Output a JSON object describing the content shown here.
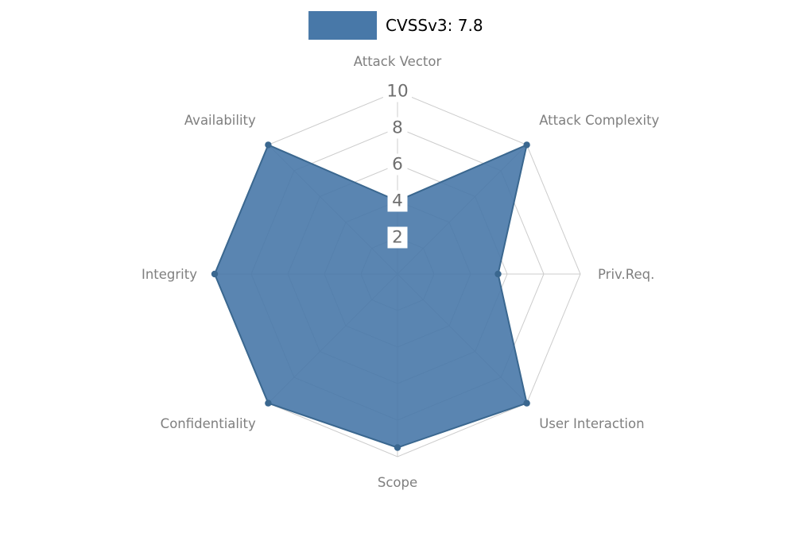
{
  "chart_data": {
    "type": "radar",
    "legend": {
      "label": "CVSSv3: 7.8",
      "position": "top-center"
    },
    "axes": [
      "Attack Vector",
      "Attack Complexity",
      "Priv.Req.",
      "User Interaction",
      "Scope",
      "Confidentiality",
      "Integrity",
      "Availability"
    ],
    "series": [
      {
        "name": "CVSSv3: 7.8",
        "values": [
          4,
          10,
          5.5,
          10,
          9.5,
          10,
          10,
          10
        ]
      }
    ],
    "radial_ticks": [
      2,
      4,
      6,
      8,
      10
    ],
    "rlim": [
      0,
      10
    ],
    "grid": true,
    "axis_start": "top",
    "direction": "clockwise",
    "colors": {
      "fill": "#4878a8",
      "stroke": "#3a678f",
      "grid": "#cccccc",
      "axis_label": "#7f7f7f",
      "tick_label": "#6e6e6e",
      "tick_box": "#ffffff",
      "legend_text": "#000000",
      "background": "#ffffff"
    }
  }
}
